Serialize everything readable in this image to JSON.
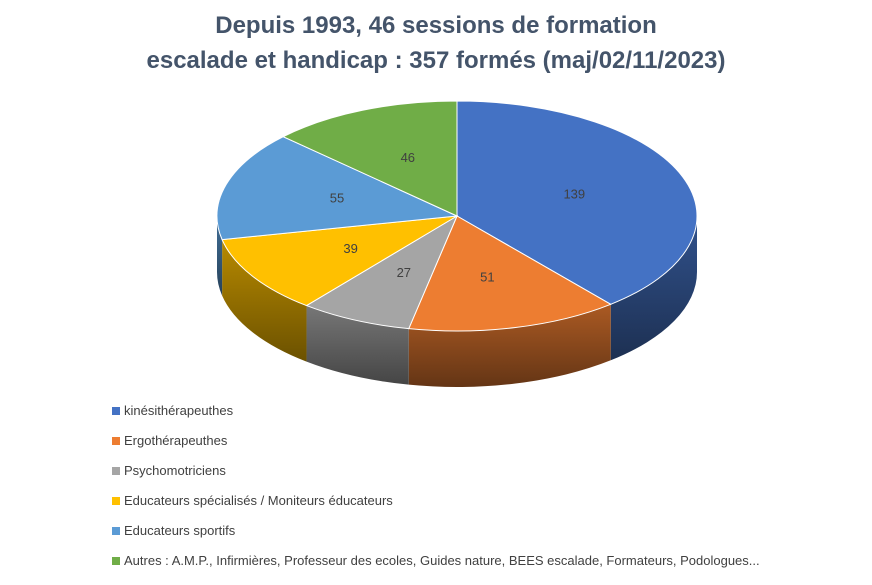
{
  "title": {
    "line1": "Depuis 1993, 46 sessions de formation",
    "line2": "escalade et handicap : 357 formés (maj/02/11/2023)"
  },
  "chart_data": {
    "type": "pie",
    "three_d": true,
    "legend_position": "bottom-left",
    "categories": [
      "kinésithérapeuthes",
      "Ergothérapeuthes",
      "Psychomotriciens",
      "Educateurs spécialisés / Moniteurs éducateurs",
      "Educateurs sportifs",
      "Autres : A.M.P., Infirmières, Professeur des ecoles, Guides nature, BEES escalade, Formateurs, Podologues..."
    ],
    "values": [
      139,
      51,
      27,
      39,
      55,
      46
    ],
    "colors": [
      "#4472c4",
      "#ed7d31",
      "#a5a5a5",
      "#ffc000",
      "#5b9bd5",
      "#70ad47"
    ]
  }
}
